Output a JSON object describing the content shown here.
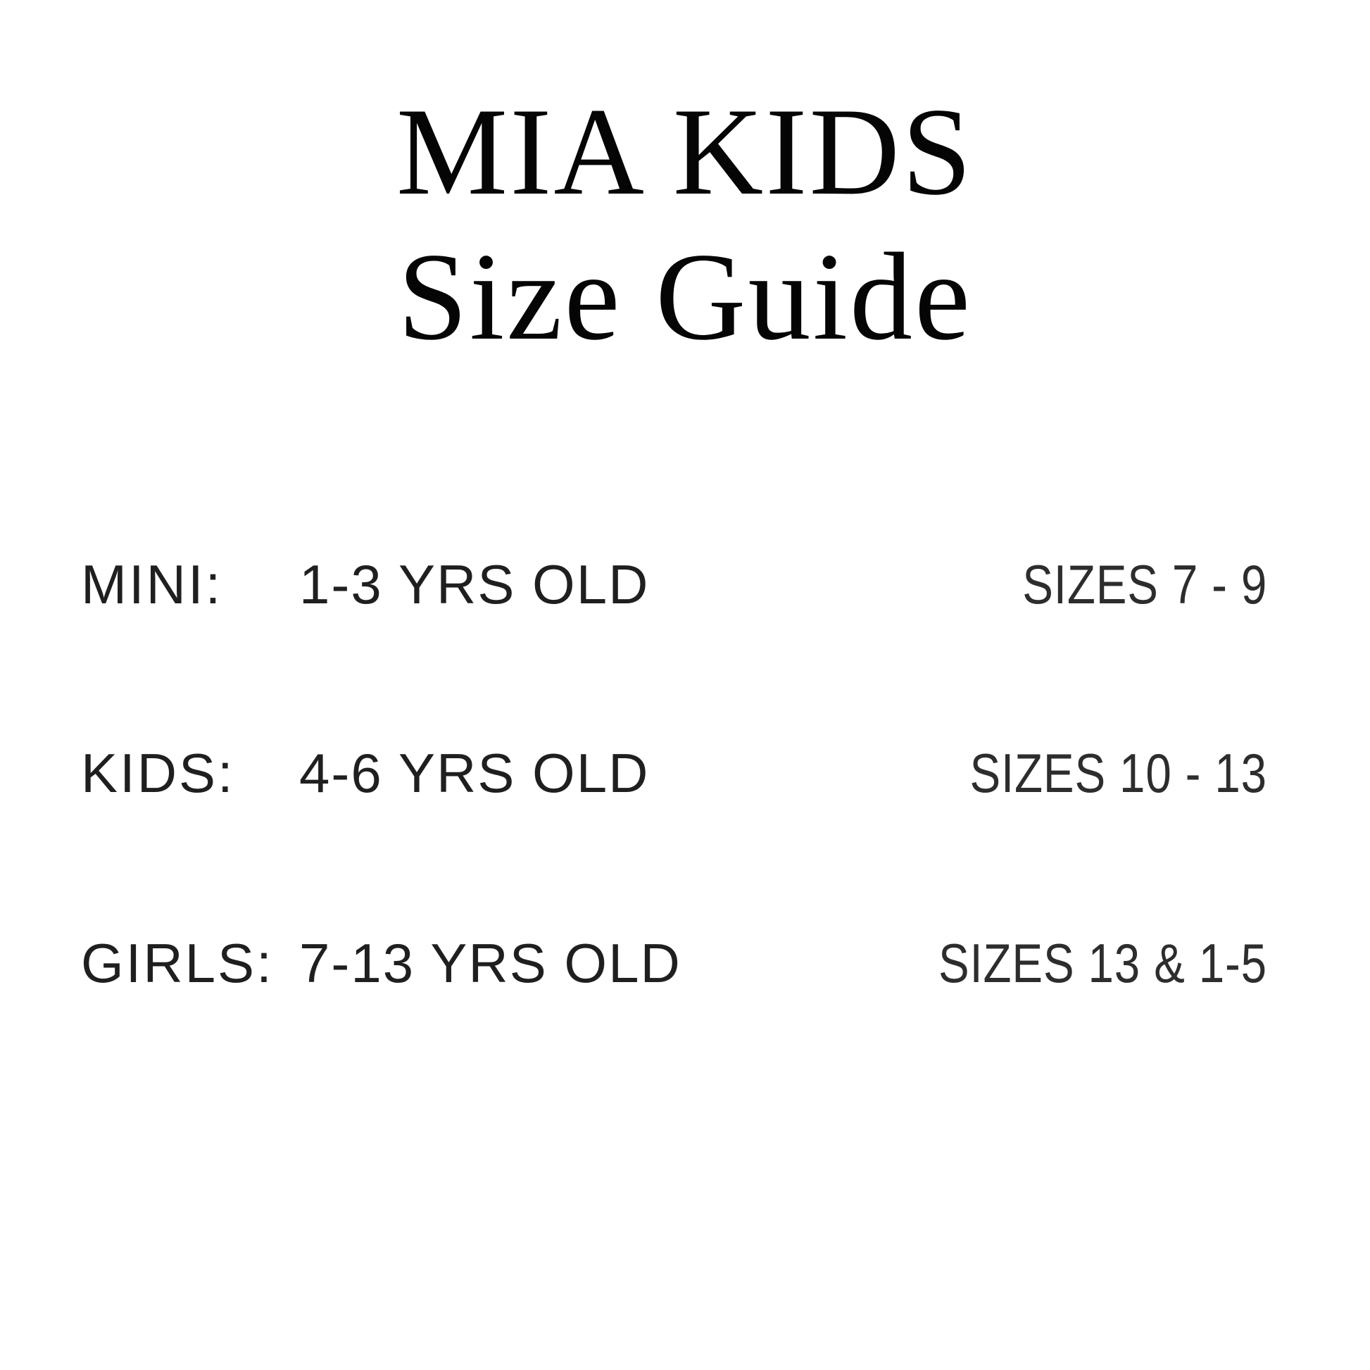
{
  "page": {
    "background_color": "#ffffff",
    "title_color": "#050505",
    "body_text_color": "#1f1f1f"
  },
  "title": {
    "line1": "MIA KIDS",
    "line2": "Size Guide"
  },
  "size_guide": {
    "rows": [
      {
        "label": "MINI:",
        "age_range": "1-3 YRS OLD",
        "sizes": "SIZES 7 - 9"
      },
      {
        "label": "KIDS:",
        "age_range": "4-6 YRS OLD",
        "sizes": "SIZES 10 - 13"
      },
      {
        "label": "GIRLS:",
        "age_range": "7-13 YRS OLD",
        "sizes": "SIZES 13 & 1-5"
      }
    ]
  }
}
